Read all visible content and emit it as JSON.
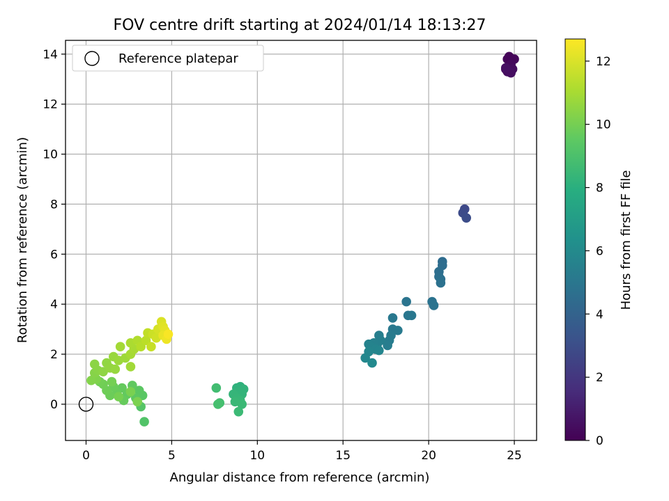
{
  "chart_data": {
    "type": "scatter",
    "title": "FOV centre drift starting at 2024/01/14 18:13:27",
    "xlabel": "Angular distance from reference (arcmin)",
    "ylabel": "Rotation from reference (arcmin)",
    "xlim": [
      -1.2,
      26.3
    ],
    "ylim": [
      -1.45,
      14.55
    ],
    "xticks": [
      0,
      5,
      10,
      15,
      20,
      25
    ],
    "yticks": [
      0,
      2,
      4,
      6,
      8,
      10,
      12,
      14
    ],
    "grid": true,
    "legend": {
      "placement": "top-left",
      "entries": [
        "Reference platepar"
      ]
    },
    "reference_point": {
      "x": 0,
      "y": 0,
      "label": "Reference platepar"
    },
    "colorbar": {
      "label": "Hours from first FF file",
      "colormap": "viridis",
      "min": 0,
      "max": 12.7,
      "ticks": [
        0,
        2,
        4,
        6,
        8,
        10,
        12
      ]
    },
    "points": [
      {
        "x": 24.7,
        "y": 13.9,
        "c": 0.1
      },
      {
        "x": 24.6,
        "y": 13.8,
        "c": 0.15
      },
      {
        "x": 25.0,
        "y": 13.8,
        "c": 0.2
      },
      {
        "x": 24.8,
        "y": 13.6,
        "c": 0.3
      },
      {
        "x": 24.5,
        "y": 13.4,
        "c": 0.35
      },
      {
        "x": 24.9,
        "y": 13.4,
        "c": 0.4
      },
      {
        "x": 24.6,
        "y": 13.3,
        "c": 0.45
      },
      {
        "x": 24.8,
        "y": 13.25,
        "c": 0.5
      },
      {
        "x": 24.5,
        "y": 13.45,
        "c": 0.55
      },
      {
        "x": 22.1,
        "y": 7.8,
        "c": 2.8
      },
      {
        "x": 22.0,
        "y": 7.65,
        "c": 2.9
      },
      {
        "x": 22.2,
        "y": 7.45,
        "c": 3.0
      },
      {
        "x": 20.8,
        "y": 5.7,
        "c": 4.5
      },
      {
        "x": 20.8,
        "y": 5.55,
        "c": 4.55
      },
      {
        "x": 20.6,
        "y": 5.3,
        "c": 4.6
      },
      {
        "x": 20.6,
        "y": 5.1,
        "c": 4.65
      },
      {
        "x": 20.7,
        "y": 5.0,
        "c": 4.7
      },
      {
        "x": 20.7,
        "y": 4.85,
        "c": 4.75
      },
      {
        "x": 20.2,
        "y": 4.1,
        "c": 4.8
      },
      {
        "x": 20.3,
        "y": 3.95,
        "c": 4.85
      },
      {
        "x": 18.7,
        "y": 4.1,
        "c": 4.9
      },
      {
        "x": 18.8,
        "y": 3.55,
        "c": 5.0
      },
      {
        "x": 19.0,
        "y": 3.55,
        "c": 5.05
      },
      {
        "x": 17.9,
        "y": 3.45,
        "c": 5.1
      },
      {
        "x": 17.9,
        "y": 3.0,
        "c": 5.15
      },
      {
        "x": 18.2,
        "y": 2.95,
        "c": 5.2
      },
      {
        "x": 17.8,
        "y": 2.75,
        "c": 5.25
      },
      {
        "x": 17.7,
        "y": 2.55,
        "c": 5.3
      },
      {
        "x": 17.6,
        "y": 2.35,
        "c": 5.35
      },
      {
        "x": 17.1,
        "y": 2.75,
        "c": 5.4
      },
      {
        "x": 17.2,
        "y": 2.55,
        "c": 5.45
      },
      {
        "x": 17.0,
        "y": 2.4,
        "c": 5.5
      },
      {
        "x": 16.8,
        "y": 2.45,
        "c": 5.55
      },
      {
        "x": 16.5,
        "y": 2.4,
        "c": 5.6
      },
      {
        "x": 16.6,
        "y": 2.3,
        "c": 5.65
      },
      {
        "x": 16.9,
        "y": 2.2,
        "c": 5.7
      },
      {
        "x": 17.1,
        "y": 2.15,
        "c": 5.75
      },
      {
        "x": 16.5,
        "y": 2.1,
        "c": 5.8
      },
      {
        "x": 16.3,
        "y": 1.85,
        "c": 5.9
      },
      {
        "x": 16.7,
        "y": 1.65,
        "c": 6.0
      },
      {
        "x": 9.0,
        "y": 0.7,
        "c": 8.1
      },
      {
        "x": 8.8,
        "y": 0.65,
        "c": 8.15
      },
      {
        "x": 9.2,
        "y": 0.6,
        "c": 8.2
      },
      {
        "x": 8.9,
        "y": 0.5,
        "c": 8.25
      },
      {
        "x": 9.1,
        "y": 0.4,
        "c": 8.3
      },
      {
        "x": 8.6,
        "y": 0.4,
        "c": 8.35
      },
      {
        "x": 8.8,
        "y": 0.25,
        "c": 8.4
      },
      {
        "x": 9.0,
        "y": 0.15,
        "c": 8.45
      },
      {
        "x": 8.7,
        "y": 0.1,
        "c": 8.5
      },
      {
        "x": 9.1,
        "y": 0.0,
        "c": 8.55
      },
      {
        "x": 8.9,
        "y": -0.3,
        "c": 8.6
      },
      {
        "x": 7.6,
        "y": 0.65,
        "c": 8.8
      },
      {
        "x": 7.8,
        "y": 0.05,
        "c": 8.9
      },
      {
        "x": 7.7,
        "y": 0.0,
        "c": 8.95
      },
      {
        "x": 3.4,
        "y": -0.7,
        "c": 9.2
      },
      {
        "x": 3.2,
        "y": -0.1,
        "c": 9.3
      },
      {
        "x": 3.3,
        "y": 0.35,
        "c": 9.4
      },
      {
        "x": 3.1,
        "y": 0.55,
        "c": 9.45
      },
      {
        "x": 2.9,
        "y": 0.25,
        "c": 9.5
      },
      {
        "x": 2.7,
        "y": 0.75,
        "c": 9.55
      },
      {
        "x": 2.4,
        "y": 0.4,
        "c": 9.6
      },
      {
        "x": 2.1,
        "y": 0.65,
        "c": 9.65
      },
      {
        "x": 2.2,
        "y": 0.15,
        "c": 9.7
      },
      {
        "x": 1.8,
        "y": 0.45,
        "c": 9.75
      },
      {
        "x": 1.6,
        "y": 0.7,
        "c": 9.8
      },
      {
        "x": 1.4,
        "y": 0.35,
        "c": 9.85
      },
      {
        "x": 1.2,
        "y": 0.55,
        "c": 9.9
      },
      {
        "x": 1.0,
        "y": 0.8,
        "c": 9.95
      },
      {
        "x": 0.8,
        "y": 0.9,
        "c": 10.0
      },
      {
        "x": 1.5,
        "y": 0.9,
        "c": 10.05
      },
      {
        "x": 1.9,
        "y": 0.3,
        "c": 10.1
      },
      {
        "x": 2.6,
        "y": 0.5,
        "c": 10.15
      },
      {
        "x": 3.0,
        "y": 0.1,
        "c": 10.2
      },
      {
        "x": 0.6,
        "y": 1.0,
        "c": 10.3
      },
      {
        "x": 0.3,
        "y": 0.95,
        "c": 10.35
      },
      {
        "x": 0.5,
        "y": 1.25,
        "c": 10.4
      },
      {
        "x": 0.7,
        "y": 1.35,
        "c": 10.45
      },
      {
        "x": 0.5,
        "y": 1.6,
        "c": 10.5
      },
      {
        "x": 1.0,
        "y": 1.3,
        "c": 10.55
      },
      {
        "x": 1.2,
        "y": 1.65,
        "c": 10.6
      },
      {
        "x": 1.4,
        "y": 1.45,
        "c": 10.65
      },
      {
        "x": 1.7,
        "y": 1.4,
        "c": 10.7
      },
      {
        "x": 1.6,
        "y": 1.9,
        "c": 10.75
      },
      {
        "x": 1.9,
        "y": 1.75,
        "c": 10.8
      },
      {
        "x": 2.3,
        "y": 1.85,
        "c": 10.85
      },
      {
        "x": 2.6,
        "y": 1.5,
        "c": 10.9
      },
      {
        "x": 2.0,
        "y": 2.3,
        "c": 10.95
      },
      {
        "x": 2.6,
        "y": 2.0,
        "c": 11.0
      },
      {
        "x": 2.8,
        "y": 2.2,
        "c": 11.05
      },
      {
        "x": 2.6,
        "y": 2.45,
        "c": 11.1
      },
      {
        "x": 3.0,
        "y": 2.55,
        "c": 11.2
      },
      {
        "x": 3.2,
        "y": 2.3,
        "c": 11.3
      },
      {
        "x": 3.5,
        "y": 2.55,
        "c": 11.4
      },
      {
        "x": 3.6,
        "y": 2.85,
        "c": 11.5
      },
      {
        "x": 3.8,
        "y": 2.3,
        "c": 11.6
      },
      {
        "x": 3.9,
        "y": 2.8,
        "c": 11.7
      },
      {
        "x": 4.1,
        "y": 2.65,
        "c": 11.8
      },
      {
        "x": 4.2,
        "y": 3.0,
        "c": 11.9
      },
      {
        "x": 4.4,
        "y": 3.3,
        "c": 12.0
      },
      {
        "x": 4.5,
        "y": 3.1,
        "c": 12.1
      },
      {
        "x": 4.6,
        "y": 2.95,
        "c": 12.2
      },
      {
        "x": 4.5,
        "y": 2.75,
        "c": 12.3
      },
      {
        "x": 4.7,
        "y": 2.6,
        "c": 12.4
      },
      {
        "x": 4.8,
        "y": 2.8,
        "c": 12.6
      }
    ]
  }
}
